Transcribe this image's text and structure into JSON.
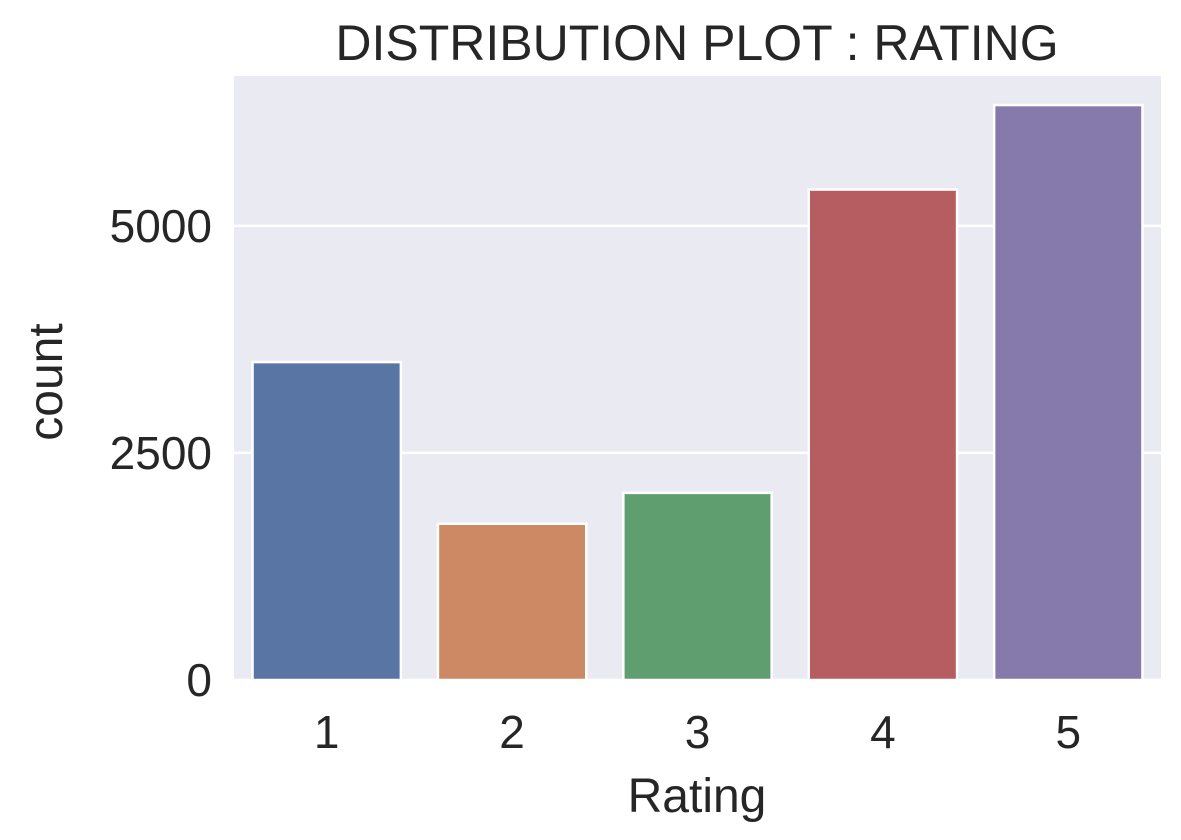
{
  "chart_data": {
    "type": "bar",
    "title": "DISTRIBUTION PLOT : RATING",
    "xlabel": "Rating",
    "ylabel": "count",
    "categories": [
      "1",
      "2",
      "3",
      "4",
      "5"
    ],
    "values": [
      3500,
      1720,
      2060,
      5400,
      6330
    ],
    "colors": [
      "#5975a4",
      "#cc8963",
      "#5f9e6e",
      "#b55d60",
      "#857aab"
    ],
    "yticks": [
      0,
      2500,
      5000
    ],
    "ytick_labels": [
      "0",
      "2500",
      "5000"
    ],
    "ylim": [
      0,
      6650
    ],
    "grid": true,
    "background": "#eaeaf2",
    "grid_color": "#ffffff",
    "bar_edge_color": "#ffffff"
  }
}
